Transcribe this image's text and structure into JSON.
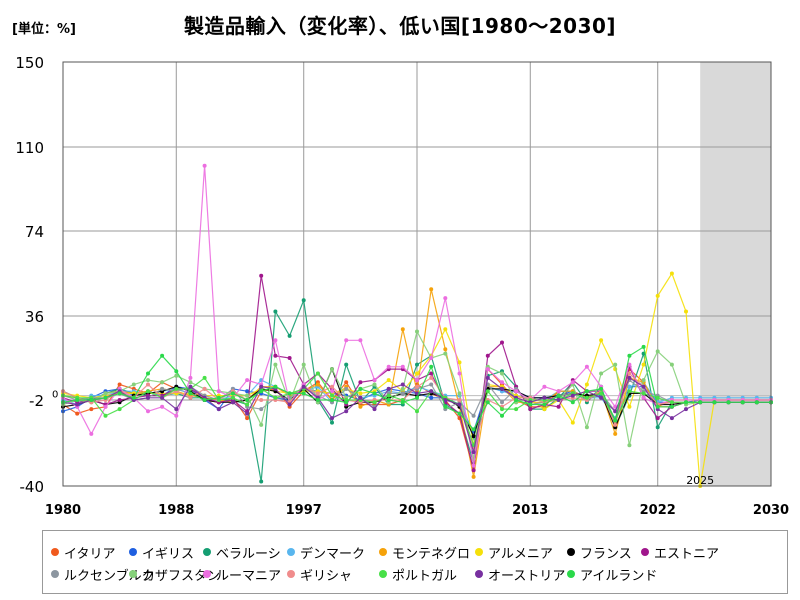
{
  "header": {
    "unit": "[単位：%]",
    "title": "製造品輸入（変化率）、低い国[1980～2030]"
  },
  "chart_data": {
    "type": "line",
    "x_tick_labels": [
      "1980",
      "1988",
      "1997",
      "2005",
      "2013",
      "2022",
      "2030"
    ],
    "y_tick_labels": [
      "150",
      "110",
      "74",
      "36",
      "-2",
      "-40"
    ],
    "y_ticks": [
      150,
      110,
      74,
      36,
      -2,
      -40
    ],
    "xlim": [
      1980,
      2030
    ],
    "ylim": [
      -40,
      150
    ],
    "forecast_start": 2025,
    "forecast_label": "2025",
    "zero_label": "0",
    "series": [
      {
        "name": "イタリア",
        "color": "#f05a1e",
        "values": [
          -4,
          -8,
          -6,
          -5,
          5,
          3,
          1,
          6,
          3,
          1,
          -2,
          -3,
          -1,
          -10,
          2,
          3,
          -5,
          2,
          6,
          -2,
          6,
          -4,
          -4,
          -4,
          -2,
          5,
          1,
          -2,
          -10,
          -33,
          12,
          5,
          -2,
          -5,
          -5,
          2,
          2,
          -1,
          1,
          -13,
          12,
          6,
          -5,
          -5,
          -3,
          -3,
          -3,
          -3,
          -3,
          -3,
          -3
        ]
      },
      {
        "name": "イギリス",
        "color": "#1f5fe0",
        "values": [
          -7,
          -5,
          -1,
          2,
          3,
          0,
          2,
          0,
          4,
          3,
          -2,
          -6,
          3,
          2,
          1,
          -1,
          -2,
          3,
          2,
          1,
          0,
          -2,
          1,
          3,
          2,
          1,
          -1,
          -1,
          -4,
          -16,
          4,
          2,
          2,
          -1,
          -1,
          0,
          2,
          -1,
          0,
          -11,
          4,
          4,
          -3,
          -3,
          -3,
          -2,
          -2,
          -2,
          -2,
          -2,
          -2
        ]
      },
      {
        "name": "ベラルーシ",
        "color": "#159e72",
        "values": [
          2,
          -1,
          -2,
          1,
          3,
          1,
          0,
          0,
          1,
          -1,
          -1,
          -2,
          -2,
          -4,
          -38,
          38,
          27,
          43,
          -2,
          -12,
          14,
          -3,
          4,
          -4,
          -4,
          14,
          18,
          -4,
          -8,
          -30,
          9,
          11,
          4,
          -6,
          -6,
          -1,
          6,
          -3,
          4,
          -14,
          0,
          19,
          -14,
          -3,
          -3,
          -3,
          -3,
          -3,
          -3,
          -3,
          -3
        ]
      },
      {
        "name": "デンマーク",
        "color": "#59b6ee",
        "values": [
          -2,
          -4,
          0,
          0,
          2,
          2,
          1,
          2,
          3,
          1,
          -2,
          -2,
          0,
          0,
          7,
          4,
          1,
          2,
          4,
          -3,
          3,
          -1,
          0,
          2,
          1,
          4,
          2,
          0,
          0,
          -19,
          4,
          2,
          0,
          -2,
          -2,
          2,
          2,
          -1,
          -1,
          -10,
          4,
          6,
          -3,
          -1,
          -1,
          -1,
          -1,
          -1,
          -1,
          -1,
          -1
        ]
      },
      {
        "name": "モンテネグロ",
        "color": "#f5a20a",
        "values": [
          0,
          -1,
          -3,
          1,
          2,
          1,
          2,
          3,
          2,
          0,
          -1,
          -2,
          -3,
          -2,
          4,
          4,
          0,
          2,
          5,
          -2,
          4,
          -5,
          -2,
          -4,
          30,
          2,
          48,
          21,
          -5,
          -36,
          4,
          4,
          -3,
          -3,
          -3,
          2,
          2,
          -1,
          2,
          -17,
          8,
          6,
          -5,
          -2,
          -2,
          -2,
          -2,
          -2,
          -2,
          -2,
          -2
        ]
      },
      {
        "name": "アルメニア",
        "color": "#f5e00a",
        "values": [
          1,
          0,
          -1,
          0,
          1,
          1,
          1,
          1,
          1,
          1,
          0,
          0,
          0,
          0,
          3,
          2,
          1,
          2,
          2,
          1,
          3,
          1,
          2,
          7,
          2,
          10,
          18,
          30,
          15,
          -22,
          5,
          4,
          0,
          -2,
          -6,
          -2,
          -12,
          5,
          25,
          12,
          -5,
          14,
          45,
          55,
          38,
          -42,
          -2,
          -2,
          -2,
          -2,
          -2
        ]
      },
      {
        "name": "フランス",
        "color": "#000000",
        "values": [
          -5,
          -4,
          -2,
          -4,
          -3,
          0,
          1,
          2,
          4,
          2,
          -2,
          -3,
          -3,
          -2,
          3,
          2,
          -2,
          3,
          -3,
          12,
          -5,
          -3,
          -3,
          -1,
          1,
          0,
          1,
          -1,
          -5,
          -18,
          3,
          3,
          2,
          -1,
          -1,
          0,
          1,
          0,
          1,
          -14,
          1,
          1,
          -4,
          -4,
          -3,
          -3,
          -3,
          -3,
          -3,
          -3,
          -3
        ]
      },
      {
        "name": "エストニア",
        "color": "#a0168c",
        "values": [
          -1,
          -3,
          -2,
          -4,
          -2,
          -1,
          0,
          0,
          3,
          3,
          -1,
          -3,
          -2,
          -7,
          54,
          18,
          17,
          5,
          10,
          3,
          -4,
          6,
          7,
          12,
          12,
          7,
          10,
          -3,
          -8,
          -33,
          18,
          24,
          4,
          -6,
          -4,
          -5,
          7,
          2,
          2,
          -11,
          13,
          -1,
          -10,
          -5,
          -3,
          -3,
          -3,
          -3,
          -3,
          -3,
          -3
        ]
      },
      {
        "name": "ルクセンブルク",
        "color": "#8c96a0",
        "values": [
          0,
          -2,
          -1,
          -1,
          1,
          -2,
          -1,
          3,
          2,
          4,
          0,
          -2,
          3,
          -5,
          -6,
          -1,
          -1,
          4,
          0,
          -3,
          3,
          -1,
          -5,
          1,
          1,
          3,
          5,
          -6,
          -3,
          -9,
          5,
          -3,
          3,
          -4,
          -3,
          0,
          1,
          -2,
          1,
          -7,
          7,
          2,
          0,
          -3,
          -3,
          -3,
          -3,
          -3,
          -3,
          -3,
          -3
        ]
      },
      {
        "name": "カザフスタン",
        "color": "#86d07a",
        "values": [
          -4,
          -2,
          -3,
          1,
          2,
          5,
          7,
          6,
          9,
          6,
          3,
          2,
          1,
          0,
          -13,
          14,
          -3,
          14,
          -3,
          12,
          -1,
          3,
          5,
          -3,
          3,
          29,
          17,
          19,
          1,
          -28,
          13,
          10,
          -3,
          -1,
          -3,
          -2,
          5,
          -14,
          10,
          14,
          -22,
          7,
          20,
          14,
          -4,
          -3,
          -3,
          -3,
          -3,
          -3,
          -3
        ]
      },
      {
        "name": "ルーマニア",
        "color": "#ec6ee0",
        "values": [
          -1,
          -5,
          -17,
          -5,
          3,
          -1,
          -7,
          -5,
          -9,
          8,
          102,
          2,
          -1,
          7,
          5,
          25,
          -3,
          5,
          -2,
          2,
          25,
          25,
          7,
          13,
          13,
          7,
          17,
          44,
          10,
          -31,
          12,
          6,
          2,
          -2,
          4,
          2,
          6,
          13,
          4,
          -5,
          14,
          -1,
          -4,
          -2,
          -2,
          -2,
          -2,
          -2,
          -2,
          -2,
          -2
        ]
      },
      {
        "name": "ギリシャ",
        "color": "#f08c8c",
        "values": [
          2,
          -1,
          -3,
          -2,
          2,
          -1,
          5,
          -1,
          2,
          -1,
          3,
          -2,
          2,
          -2,
          -2,
          -2,
          -3,
          4,
          1,
          4,
          -2,
          -3,
          -2,
          -2,
          -2,
          4,
          8,
          -1,
          -2,
          -23,
          -2,
          -5,
          -1,
          -1,
          -3,
          -2,
          -1,
          -2,
          2,
          -13,
          10,
          4,
          -4,
          -3,
          -3,
          -3,
          -3,
          -3,
          -3,
          -3,
          -3
        ]
      },
      {
        "name": "ポルトガル",
        "color": "#48e048",
        "values": [
          0,
          -1,
          -1,
          -9,
          -6,
          -2,
          2,
          -1,
          3,
          3,
          8,
          -2,
          -1,
          -4,
          3,
          -1,
          1,
          3,
          10,
          0,
          -2,
          -2,
          -3,
          0,
          -2,
          -7,
          2,
          -1,
          -4,
          -22,
          2,
          -6,
          -6,
          -2,
          -2,
          -2,
          1,
          -1,
          1,
          -11,
          2,
          1,
          -1,
          -3,
          -3,
          -3,
          -3,
          -3,
          -3,
          -3,
          -3
        ]
      },
      {
        "name": "オーストリア",
        "color": "#7830a0",
        "values": [
          -3,
          -4,
          -2,
          -1,
          2,
          -2,
          -1,
          -1,
          -6,
          4,
          -1,
          -6,
          -3,
          -8,
          4,
          3,
          -4,
          4,
          -1,
          -10,
          -7,
          -1,
          -6,
          3,
          5,
          1,
          2,
          -2,
          -4,
          -25,
          8,
          3,
          -1,
          -3,
          -1,
          -2,
          0,
          2,
          -1,
          -7,
          8,
          4,
          -6,
          -10,
          -6,
          -3,
          -3,
          -3,
          -3,
          -3,
          -3
        ]
      },
      {
        "name": "アイルランド",
        "color": "#2ad94a",
        "values": [
          -3,
          -2,
          -2,
          -1,
          1,
          -1,
          10,
          18,
          11,
          1,
          -2,
          -1,
          1,
          -2,
          2,
          4,
          1,
          1,
          -2,
          -2,
          -3,
          3,
          1,
          -2,
          -3,
          -1,
          13,
          -5,
          -8,
          -15,
          -3,
          -9,
          -2,
          -4,
          -4,
          0,
          -3,
          2,
          3,
          -11,
          18,
          22,
          -5,
          -5,
          -3,
          -3,
          -3,
          -3,
          -3,
          -3,
          -3
        ]
      }
    ]
  }
}
